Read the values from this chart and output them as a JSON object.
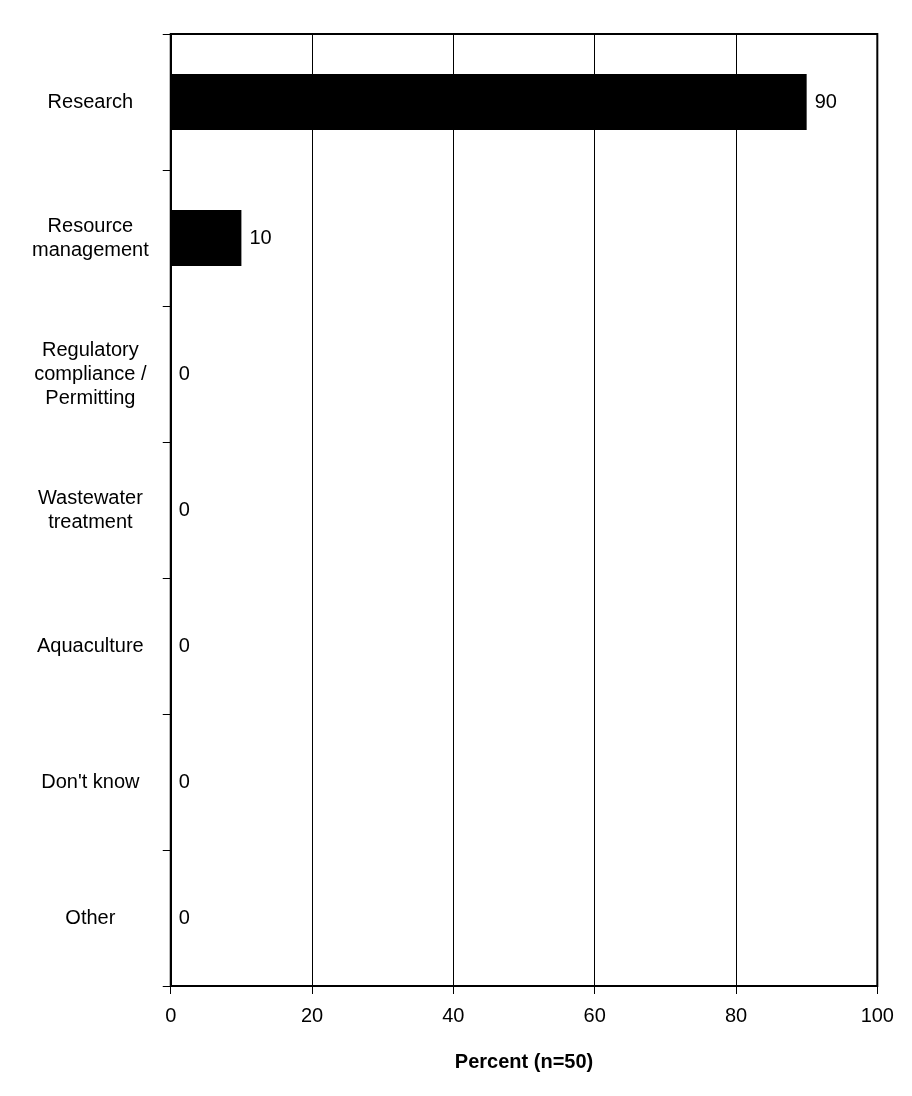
{
  "chart_data": {
    "type": "bar",
    "orientation": "horizontal",
    "xlabel": "Percent (n=50)",
    "categories": [
      "Research",
      "Resource management",
      "Regulatory compliance / Permitting",
      "Wastewater treatment",
      "Aquaculture",
      "Don't know",
      "Other"
    ],
    "values": [
      90,
      10,
      0,
      0,
      0,
      0,
      0
    ],
    "color": "#000000",
    "xlim": [
      0,
      100
    ],
    "xticks": [
      0,
      20,
      40,
      60,
      80,
      100
    ],
    "grid": "x",
    "data_labels": true,
    "legend": false
  }
}
